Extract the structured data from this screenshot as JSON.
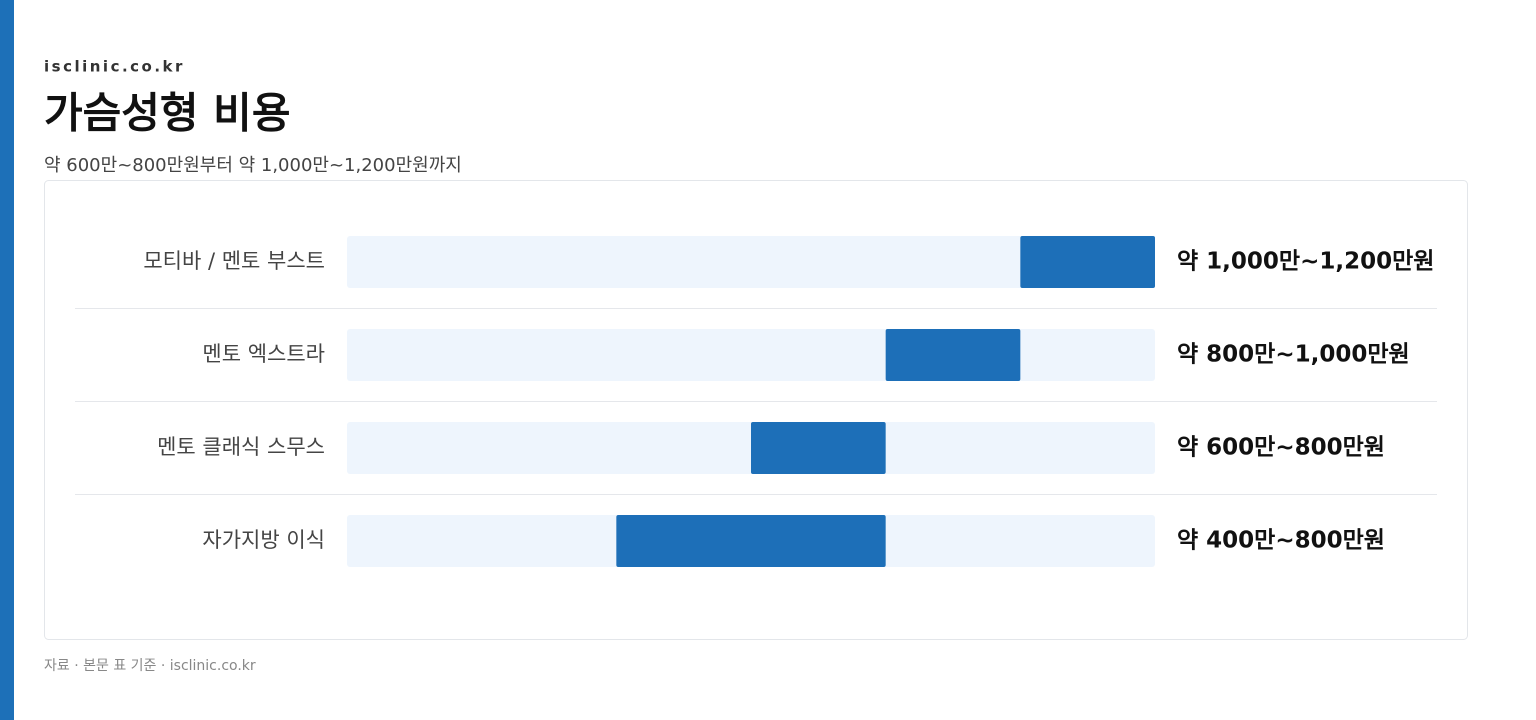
{
  "site": "isclinic.co.kr",
  "chart_data": {
    "type": "range-bar",
    "title": "가슴성형 비용",
    "subtitle": "약 600만~800만원부터 약 1,000만~1,200만원까지",
    "categories": [
      "모티바 / 멘토 부스트",
      "멘토 엑스트라",
      "멘토 클래식 스무스",
      "자가지방 이식"
    ],
    "low": [
      1000,
      800,
      600,
      400
    ],
    "high": [
      1200,
      1000,
      800,
      800
    ],
    "value_labels": [
      "약 1,000만~1,200만원",
      "약 800만~1,000만원",
      "약 600만~800만원",
      "약 400만~800만원"
    ],
    "xlim": [
      0,
      1200
    ],
    "color": "#1d6fb8",
    "track_color": "#eef5fd"
  },
  "source": "자료 · 본문 표 기준 · isclinic.co.kr"
}
